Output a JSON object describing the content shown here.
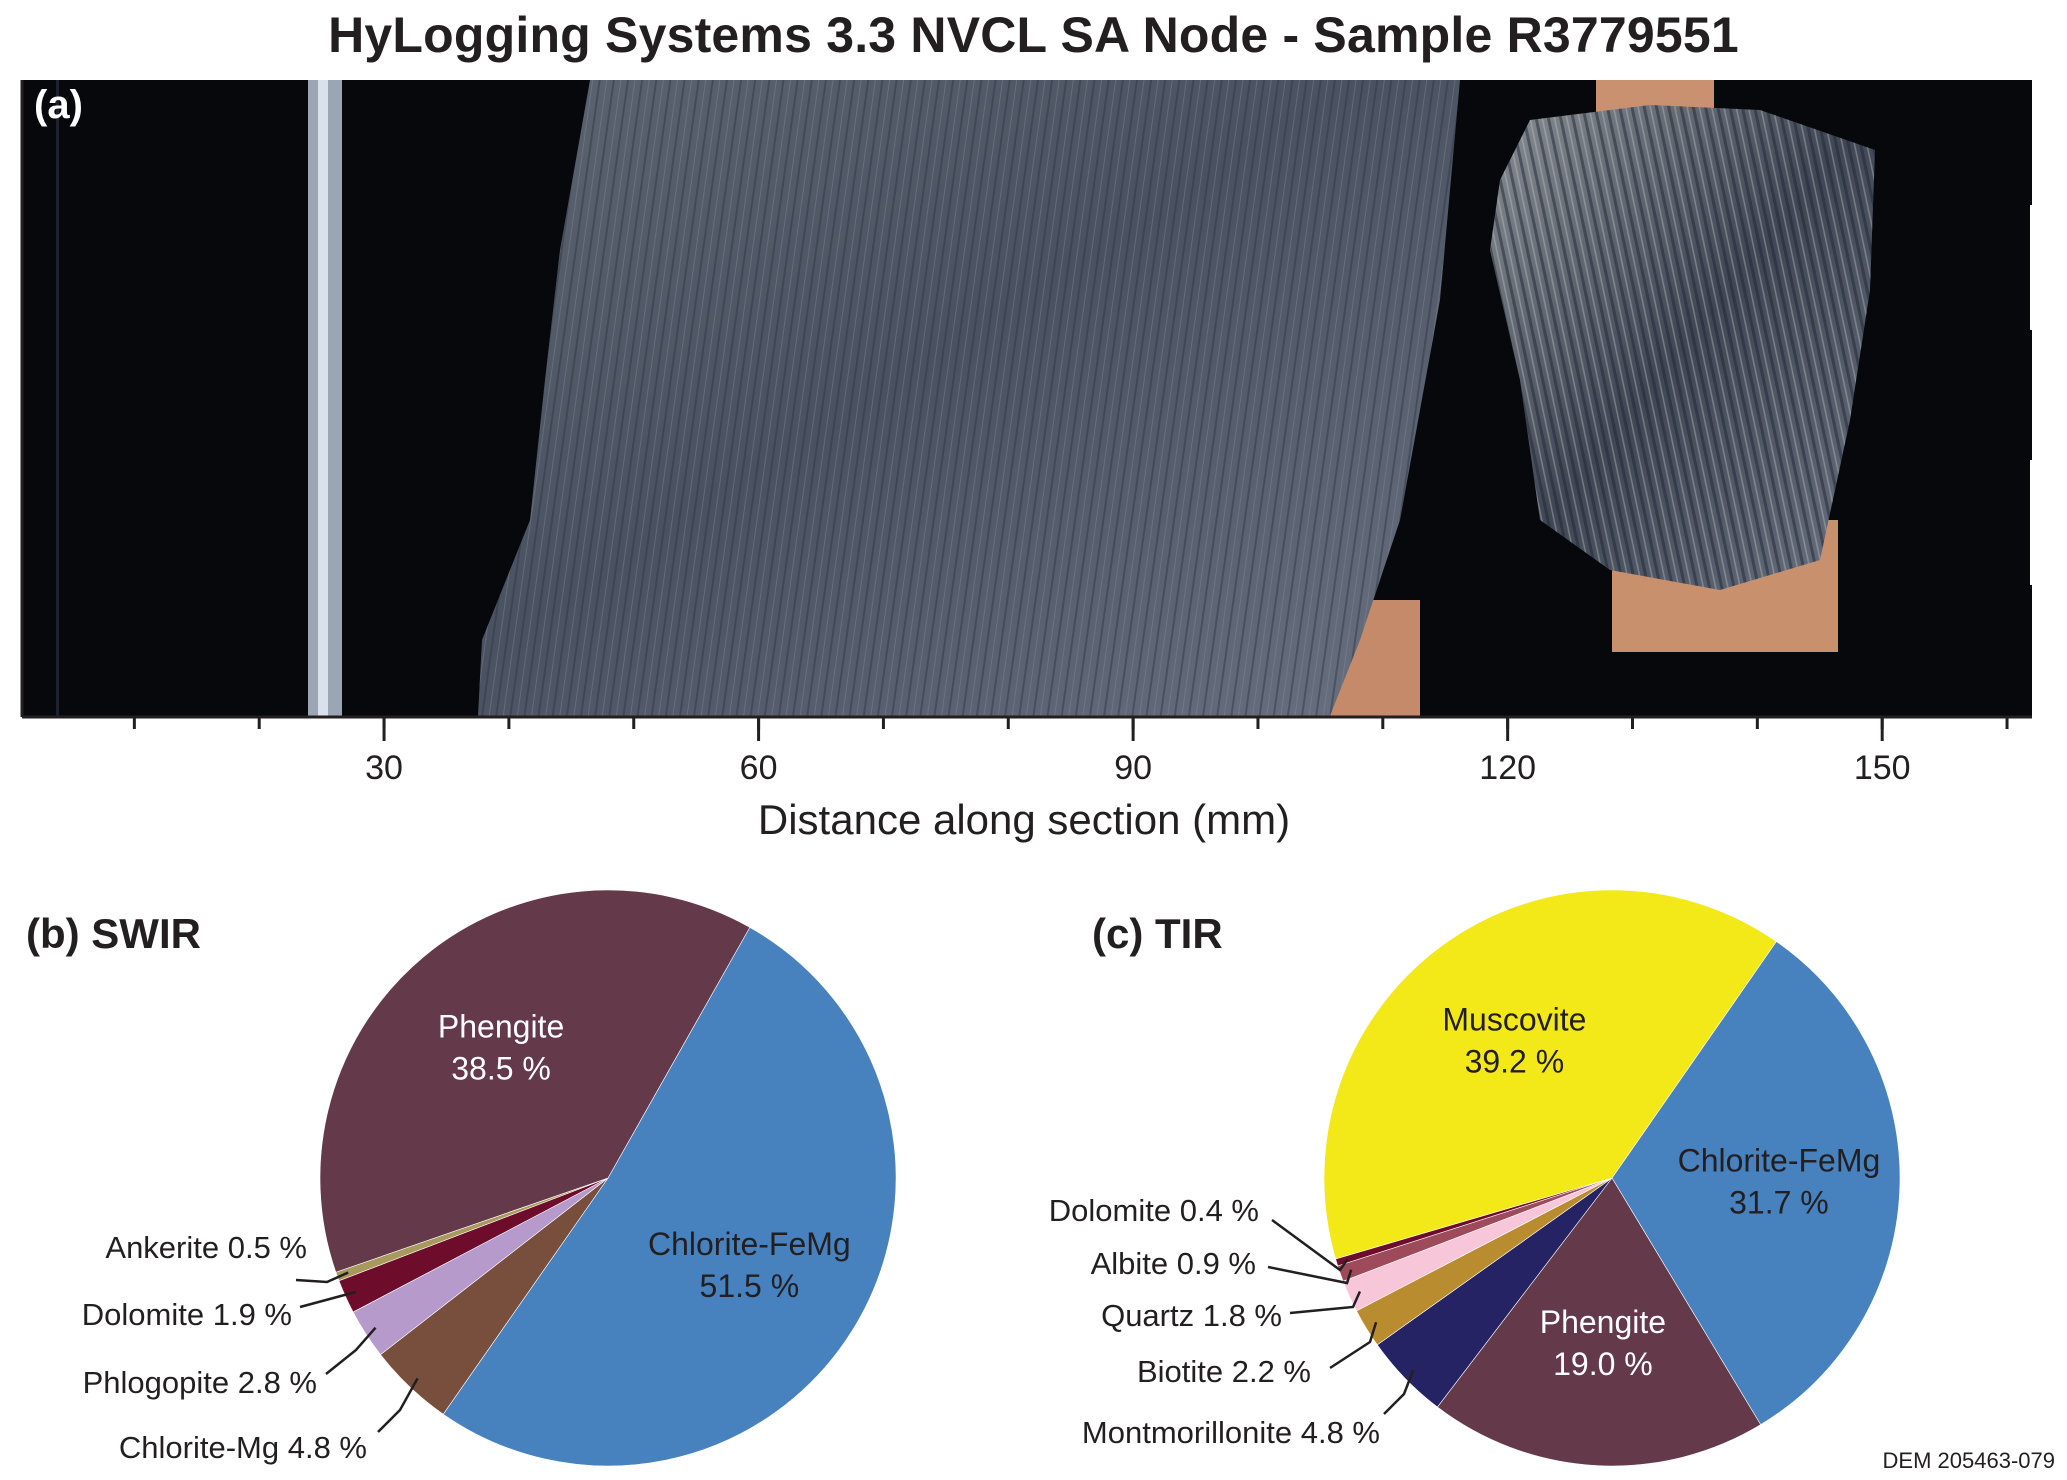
{
  "title": "HyLogging Systems 3.3 NVCL SA Node - Sample R3779551",
  "panel_a": {
    "label": "(a)",
    "axis": {
      "xlabel": "Distance along section (mm)",
      "xlim": [
        1,
        162
      ],
      "major_ticks": [
        30,
        60,
        90,
        120,
        150
      ],
      "tick_labels": [
        "30",
        "60",
        "90",
        "120",
        "150"
      ],
      "minor_tick_step": 10
    }
  },
  "footer_code": "DEM 205463-079",
  "chart_data": [
    {
      "type": "pie",
      "title": "(b) SWIR",
      "slices": [
        {
          "label": "Chlorite-FeMg",
          "value": 51.5,
          "display": "51.5 %",
          "color": "#4781be",
          "label_inside": true
        },
        {
          "label": "Chlorite-Mg",
          "value": 4.8,
          "display": "Chlorite-Mg 4.8 %",
          "color": "#784e3d",
          "label_inside": false
        },
        {
          "label": "Phlogopite",
          "value": 2.8,
          "display": "Phlogopite 2.8 %",
          "color": "#b59acb",
          "label_inside": false
        },
        {
          "label": "Dolomite",
          "value": 1.9,
          "display": "Dolomite 1.9 %",
          "color": "#6e0d2b",
          "label_inside": false
        },
        {
          "label": "Ankerite",
          "value": 0.5,
          "display": "Ankerite 0.5 %",
          "color": "#a89a5c",
          "label_inside": false
        },
        {
          "label": "Phengite",
          "value": 38.5,
          "display": "38.5 %",
          "color": "#643a4b",
          "label_inside": true
        }
      ]
    },
    {
      "type": "pie",
      "title": "(c) TIR",
      "slices": [
        {
          "label": "Chlorite-FeMg",
          "value": 31.7,
          "display": "31.7 %",
          "color": "#4781be",
          "label_inside": true
        },
        {
          "label": "Phengite",
          "value": 19.0,
          "display": "19.0 %",
          "color": "#643a4b",
          "label_inside": true
        },
        {
          "label": "Montmorillonite",
          "value": 4.8,
          "display": "Montmorillonite 4.8 %",
          "color": "#262364",
          "label_inside": false
        },
        {
          "label": "Biotite",
          "value": 2.2,
          "display": "Biotite 2.2 %",
          "color": "#b98c30",
          "label_inside": false
        },
        {
          "label": "Quartz",
          "value": 1.8,
          "display": "Quartz 1.8 %",
          "color": "#f7c7d9",
          "label_inside": false
        },
        {
          "label": "Albite",
          "value": 0.9,
          "display": "Albite 0.9 %",
          "color": "#9d4a5a",
          "label_inside": false
        },
        {
          "label": "Dolomite",
          "value": 0.4,
          "display": "Dolomite 0.4 %",
          "color": "#6e0d2b",
          "label_inside": false
        },
        {
          "label": "Muscovite",
          "value": 39.2,
          "display": "39.2 %",
          "color": "#f3e918",
          "label_inside": true
        }
      ]
    }
  ]
}
